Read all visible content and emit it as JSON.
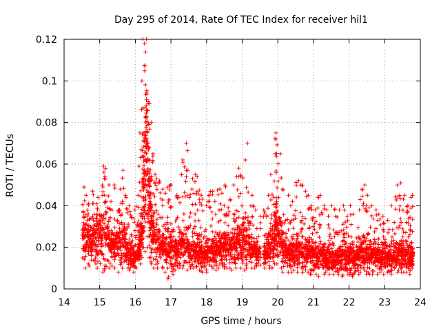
{
  "chart_data": {
    "type": "scatter",
    "title": "Day 295 of 2014, Rate Of TEC Index for receiver hil1",
    "xlabel": "GPS time / hours",
    "ylabel": "ROTI / TECUs",
    "xlim": [
      14,
      24
    ],
    "ylim": [
      0,
      0.12
    ],
    "xticks": [
      "14",
      "15",
      "16",
      "17",
      "18",
      "19",
      "20",
      "21",
      "22",
      "23",
      "24"
    ],
    "yticks": [
      "0",
      "0.02",
      "0.04",
      "0.06",
      "0.08",
      "0.1",
      "0.12"
    ],
    "grid": true,
    "marker": "+",
    "marker_color": "#ff0000",
    "series": [
      {
        "name": "ROTI",
        "description_of_envelope": "Dense cluster 0.005–0.04 TECU from 14.45 to 23.8 h with a gap 19.45–19.55 h; spikes to 0.12 near 16.3 h, 0.075 near 19.9 h, 0.07 near 17.4 h and 19.1 h",
        "x": [
          14.5,
          14.6,
          14.7,
          14.8,
          14.9,
          15.0,
          15.1,
          15.2,
          15.3,
          15.4,
          15.5,
          15.6,
          15.7,
          15.8,
          15.9,
          16.0,
          16.1,
          16.15,
          16.2,
          16.25,
          16.3,
          16.35,
          16.4,
          16.45,
          16.5,
          16.6,
          16.7,
          16.8,
          16.9,
          17.0,
          17.1,
          17.2,
          17.3,
          17.4,
          17.5,
          17.6,
          17.7,
          17.8,
          17.9,
          18.0,
          18.1,
          18.2,
          18.3,
          18.4,
          18.5,
          18.6,
          18.7,
          18.8,
          18.9,
          19.0,
          19.1,
          19.2,
          19.3,
          19.4,
          19.6,
          19.7,
          19.8,
          19.9,
          19.95,
          20.0,
          20.1,
          20.2,
          20.3,
          20.4,
          20.5,
          20.6,
          20.7,
          20.8,
          20.9,
          21.0,
          21.1,
          21.2,
          21.3,
          21.4,
          21.5,
          21.6,
          21.7,
          21.8,
          21.9,
          22.0,
          22.1,
          22.2,
          22.3,
          22.4,
          22.5,
          22.6,
          22.7,
          22.8,
          22.9,
          23.0,
          23.1,
          23.2,
          23.3,
          23.4,
          23.5,
          23.6,
          23.7,
          23.75
        ],
        "y_max": [
          0.049,
          0.045,
          0.035,
          0.047,
          0.044,
          0.05,
          0.059,
          0.05,
          0.042,
          0.05,
          0.048,
          0.057,
          0.045,
          0.04,
          0.038,
          0.045,
          0.075,
          0.1,
          0.12,
          0.118,
          0.12,
          0.09,
          0.08,
          0.065,
          0.055,
          0.052,
          0.048,
          0.046,
          0.05,
          0.05,
          0.045,
          0.055,
          0.062,
          0.07,
          0.048,
          0.055,
          0.054,
          0.045,
          0.04,
          0.045,
          0.047,
          0.042,
          0.048,
          0.046,
          0.05,
          0.043,
          0.05,
          0.054,
          0.058,
          0.062,
          0.07,
          0.045,
          0.04,
          0.035,
          0.038,
          0.045,
          0.055,
          0.075,
          0.072,
          0.065,
          0.048,
          0.045,
          0.04,
          0.042,
          0.052,
          0.05,
          0.047,
          0.045,
          0.04,
          0.038,
          0.045,
          0.04,
          0.038,
          0.035,
          0.04,
          0.035,
          0.038,
          0.04,
          0.035,
          0.04,
          0.036,
          0.038,
          0.048,
          0.05,
          0.045,
          0.04,
          0.038,
          0.036,
          0.035,
          0.033,
          0.04,
          0.032,
          0.05,
          0.051,
          0.045,
          0.04,
          0.044,
          0.045
        ],
        "y_median": [
          0.025,
          0.024,
          0.022,
          0.026,
          0.027,
          0.025,
          0.028,
          0.026,
          0.022,
          0.02,
          0.022,
          0.024,
          0.021,
          0.018,
          0.016,
          0.017,
          0.02,
          0.03,
          0.05,
          0.06,
          0.07,
          0.05,
          0.04,
          0.03,
          0.025,
          0.023,
          0.02,
          0.018,
          0.02,
          0.019,
          0.018,
          0.02,
          0.022,
          0.021,
          0.018,
          0.02,
          0.02,
          0.018,
          0.017,
          0.018,
          0.019,
          0.018,
          0.02,
          0.02,
          0.021,
          0.02,
          0.021,
          0.022,
          0.023,
          0.024,
          0.025,
          0.02,
          0.018,
          0.017,
          0.018,
          0.02,
          0.022,
          0.028,
          0.03,
          0.025,
          0.02,
          0.018,
          0.017,
          0.018,
          0.02,
          0.02,
          0.019,
          0.018,
          0.017,
          0.016,
          0.017,
          0.016,
          0.015,
          0.014,
          0.015,
          0.015,
          0.015,
          0.016,
          0.015,
          0.016,
          0.015,
          0.016,
          0.018,
          0.019,
          0.017,
          0.016,
          0.016,
          0.016,
          0.016,
          0.015,
          0.016,
          0.015,
          0.017,
          0.018,
          0.017,
          0.016,
          0.016,
          0.016
        ],
        "y_min": [
          0.01,
          0.012,
          0.011,
          0.012,
          0.01,
          0.008,
          0.009,
          0.01,
          0.011,
          0.01,
          0.008,
          0.01,
          0.01,
          0.009,
          0.008,
          0.01,
          0.012,
          0.015,
          0.02,
          0.018,
          0.02,
          0.015,
          0.013,
          0.012,
          0.01,
          0.01,
          0.01,
          0.008,
          0.005,
          0.007,
          0.009,
          0.01,
          0.01,
          0.009,
          0.01,
          0.01,
          0.009,
          0.008,
          0.009,
          0.008,
          0.01,
          0.009,
          0.01,
          0.01,
          0.01,
          0.01,
          0.009,
          0.01,
          0.01,
          0.009,
          0.01,
          0.01,
          0.01,
          0.011,
          0.01,
          0.01,
          0.01,
          0.012,
          0.012,
          0.01,
          0.008,
          0.008,
          0.008,
          0.009,
          0.008,
          0.008,
          0.008,
          0.008,
          0.007,
          0.007,
          0.006,
          0.007,
          0.008,
          0.007,
          0.007,
          0.008,
          0.007,
          0.006,
          0.007,
          0.006,
          0.007,
          0.007,
          0.008,
          0.007,
          0.007,
          0.007,
          0.007,
          0.008,
          0.007,
          0.008,
          0.007,
          0.01,
          0.008,
          0.008,
          0.008,
          0.008,
          0.007,
          0.01
        ]
      }
    ]
  }
}
